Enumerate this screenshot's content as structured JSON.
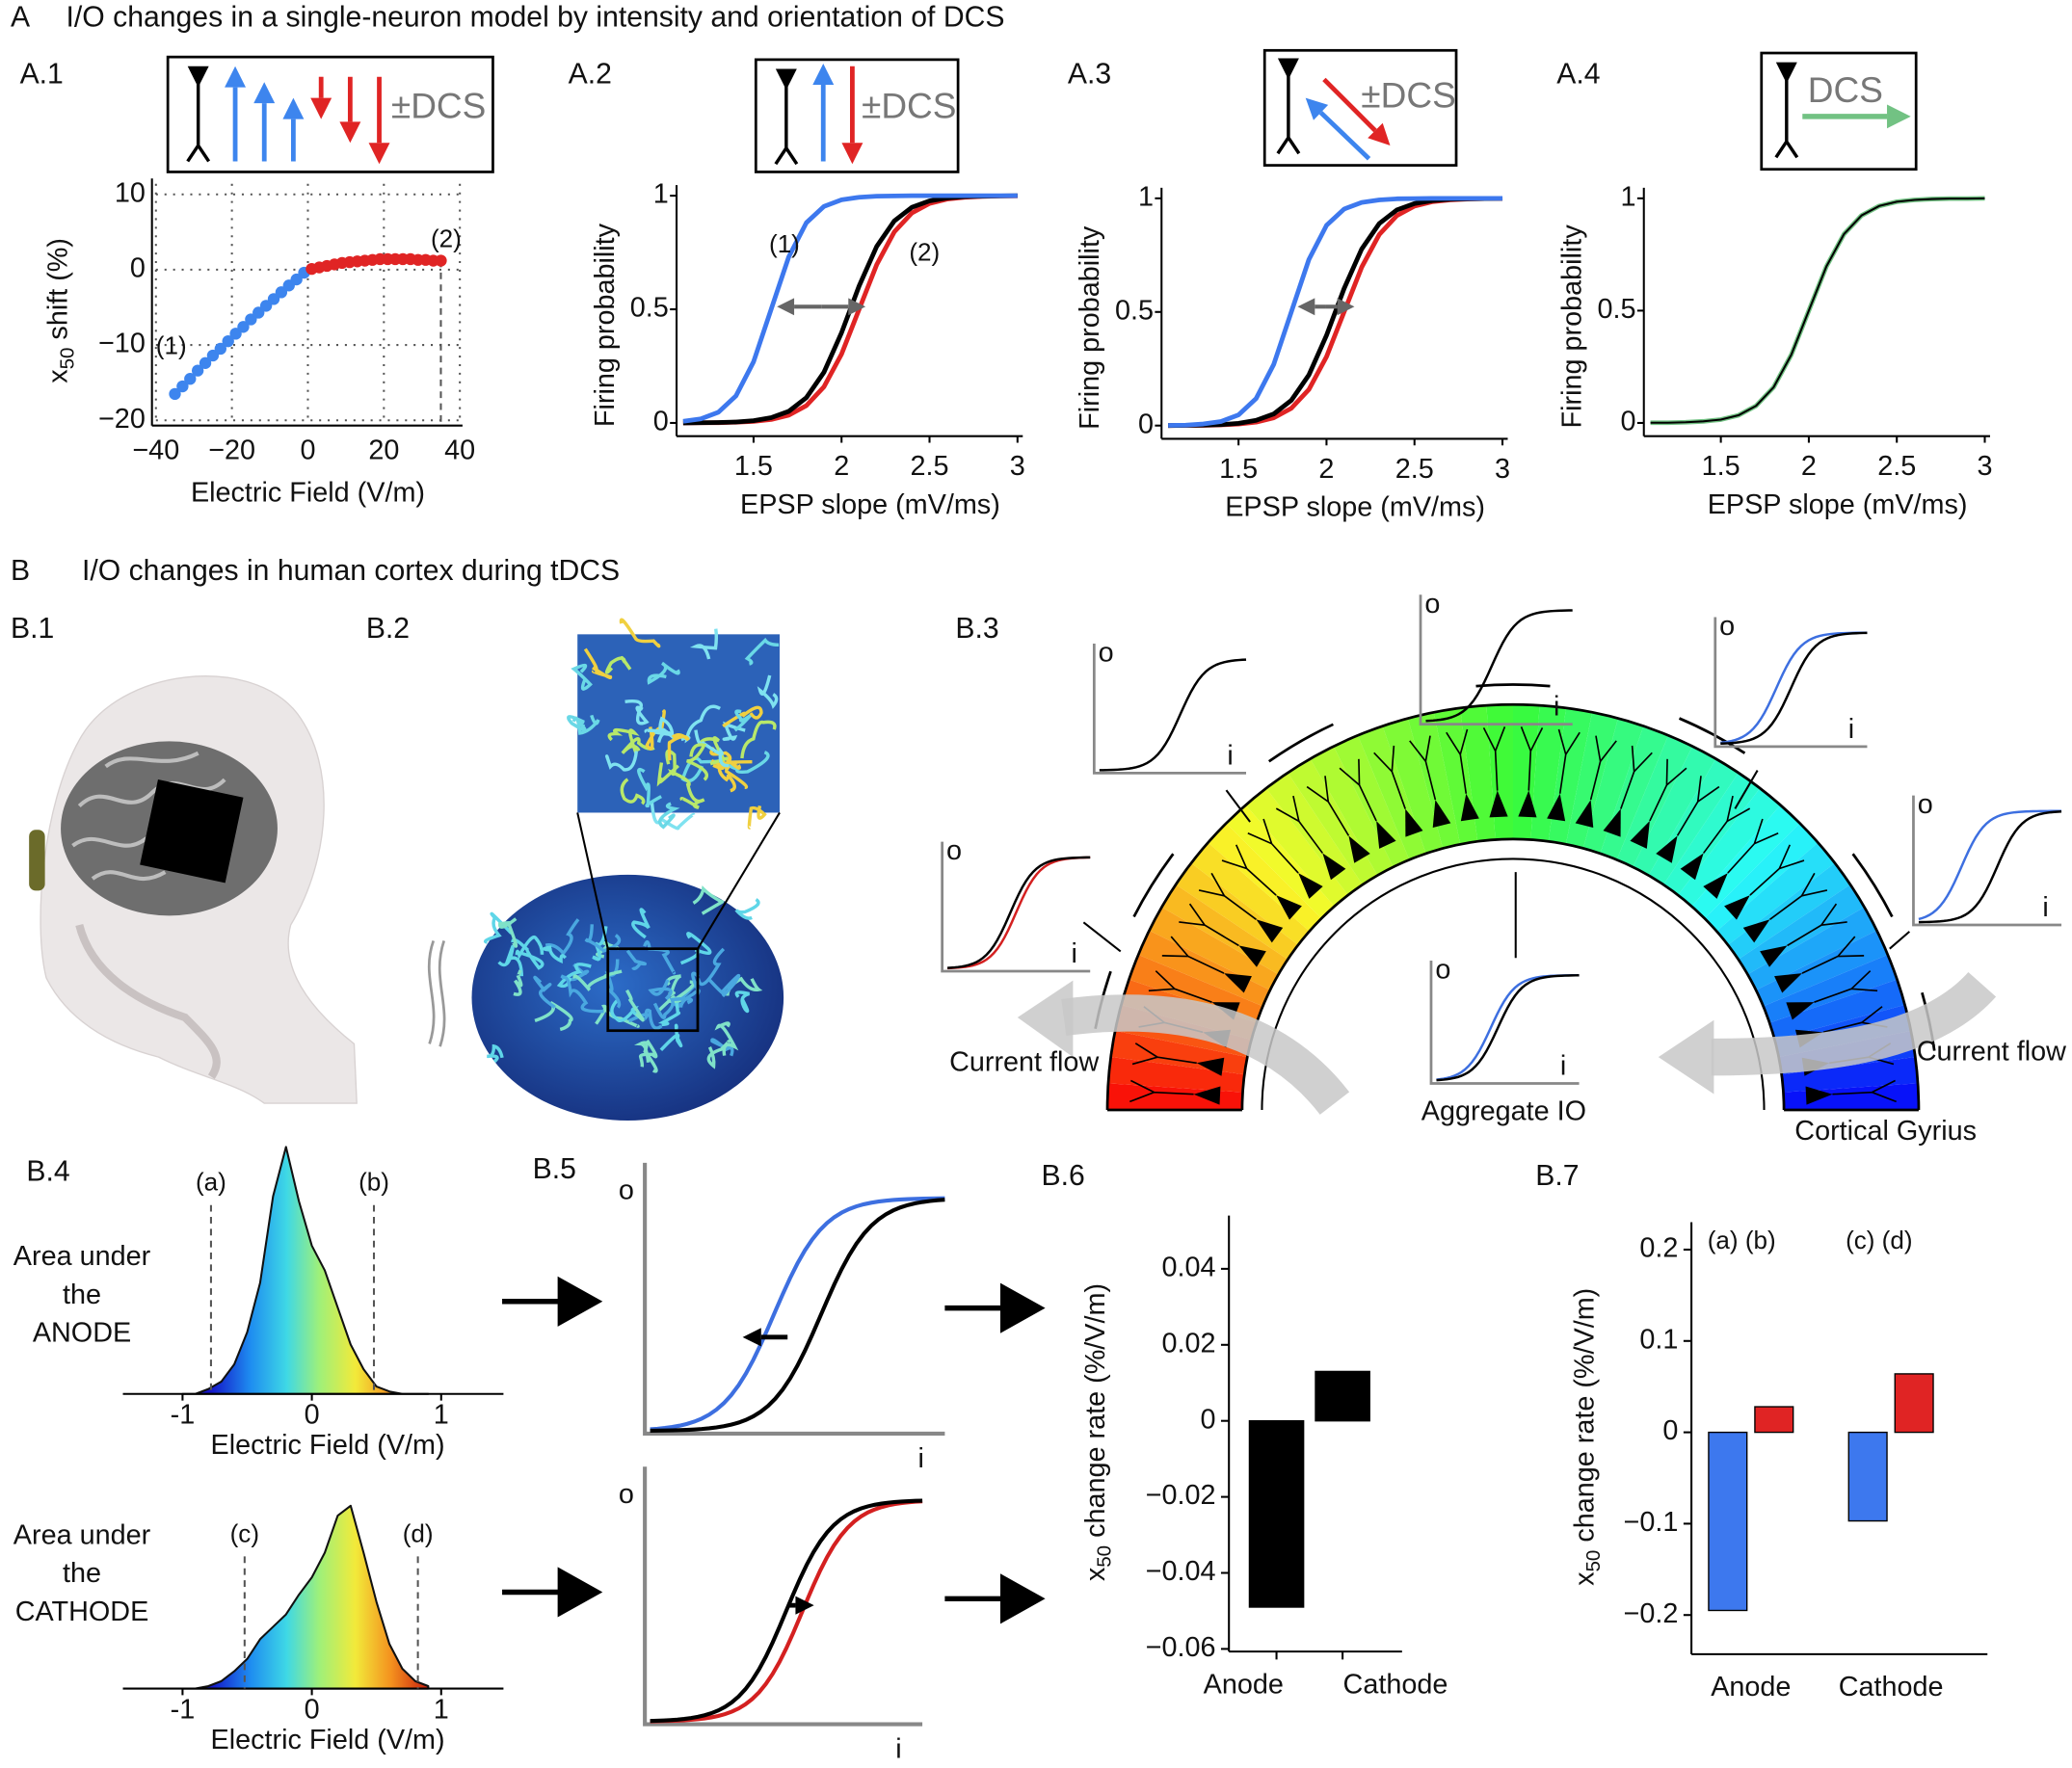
{
  "figure": {
    "sections": [
      {
        "label": "A",
        "title": "I/O changes in a single-neuron model by intensity and orientation of DCS"
      },
      {
        "label": "B",
        "title": "I/O changes in human cortex during tDCS"
      }
    ],
    "panel_labels": [
      "A.1",
      "A.2",
      "A.3",
      "A.4",
      "B.1",
      "B.2",
      "B.3",
      "B.4",
      "B.5",
      "B.6",
      "B.7"
    ],
    "dcs_sign": "±",
    "dcs": "DCS",
    "io_labels": {
      "o": "o",
      "i": "i"
    },
    "b3": {
      "current_flow": "Current flow",
      "aggregate": "Aggregate IO",
      "gyrus": "Cortical Gyrius"
    },
    "b4_labels": [
      [
        "Area under",
        "the",
        "ANODE"
      ],
      [
        "Area under",
        "the",
        "CATHODE"
      ]
    ]
  },
  "chart_data": [
    {
      "type": "scatter",
      "series": [
        {
          "color": "#3d85ee",
          "x": [
            -35,
            -33,
            -31,
            -29,
            -27,
            -25,
            -23,
            -21,
            -19,
            -17,
            -15,
            -13,
            -11,
            -9,
            -7,
            -5,
            -3,
            -1
          ],
          "values": [
            -16.5,
            -15.5,
            -14.5,
            -13.4,
            -12.4,
            -11.4,
            -10.5,
            -9.5,
            -8.5,
            -7.6,
            -6.6,
            -5.7,
            -4.8,
            -3.9,
            -3.0,
            -2.1,
            -1.3,
            -0.4
          ]
        },
        {
          "color": "#e02424",
          "x": [
            1,
            3,
            5,
            7,
            9,
            11,
            13,
            15,
            17,
            19,
            21,
            23,
            25,
            27,
            29,
            31,
            33,
            35
          ],
          "values": [
            0.1,
            0.3,
            0.5,
            0.7,
            0.9,
            1.0,
            1.1,
            1.2,
            1.3,
            1.4,
            1.4,
            1.4,
            1.4,
            1.4,
            1.3,
            1.3,
            1.2,
            1.2
          ]
        }
      ],
      "xlim": [
        -40,
        40
      ],
      "xticks": [
        {
          "value": -40,
          "label": "−40"
        },
        {
          "value": -20,
          "label": "−20"
        },
        0,
        20,
        40
      ],
      "ylim": [
        -20,
        10
      ],
      "yticks": [
        {
          "value": -20,
          "label": "−20"
        },
        {
          "value": -10,
          "label": "−10"
        },
        0,
        10
      ],
      "grid": true,
      "xlabel": "Electric Field (V/m)",
      "ylabel": {
        "main": "x",
        "sub": "50",
        "rest": " shift (%)"
      },
      "annotations": [
        "(1)",
        "(2)"
      ]
    },
    {
      "type": "line",
      "x": [
        1.1,
        1.2,
        1.3,
        1.4,
        1.5,
        1.6,
        1.7,
        1.8,
        1.9,
        2.0,
        2.1,
        2.2,
        2.3,
        2.4,
        2.5,
        2.6,
        2.7,
        2.8,
        2.9,
        3.0
      ],
      "series": [
        {
          "color": "#e02424",
          "values": [
            0,
            0.001,
            0.001,
            0.003,
            0.007,
            0.015,
            0.034,
            0.076,
            0.159,
            0.303,
            0.5,
            0.697,
            0.841,
            0.924,
            0.966,
            0.985,
            0.993,
            0.997,
            0.999,
            0.999
          ]
        },
        {
          "color": "#000000",
          "values": [
            0,
            0.001,
            0.002,
            0.004,
            0.01,
            0.023,
            0.051,
            0.111,
            0.223,
            0.397,
            0.603,
            0.777,
            0.889,
            0.949,
            0.977,
            0.99,
            0.996,
            0.998,
            0.999,
            1
          ]
        },
        {
          "color": "#3d78ee",
          "values": [
            0.007,
            0.018,
            0.047,
            0.119,
            0.269,
            0.5,
            0.731,
            0.881,
            0.953,
            0.982,
            0.993,
            0.998,
            0.999,
            1,
            1,
            1,
            1,
            1,
            1,
            1
          ]
        }
      ],
      "xlim": [
        1.1,
        3.0
      ],
      "xticks": [
        1.5,
        2,
        2.5,
        3
      ],
      "ylim": [
        0,
        1
      ],
      "yticks": [
        0,
        0.5,
        1
      ],
      "xlabel": "EPSP slope (mV/ms)",
      "ylabel": "Firing probability",
      "annotations": [
        "(1)",
        "(2)"
      ]
    },
    {
      "type": "line",
      "x": [
        1.1,
        1.2,
        1.3,
        1.4,
        1.5,
        1.6,
        1.7,
        1.8,
        1.9,
        2.0,
        2.1,
        2.2,
        2.3,
        2.4,
        2.5,
        2.6,
        2.7,
        2.8,
        2.9,
        3.0
      ],
      "series": [
        {
          "color": "#e02424",
          "values": [
            0,
            0.001,
            0.001,
            0.003,
            0.007,
            0.015,
            0.034,
            0.076,
            0.159,
            0.303,
            0.5,
            0.697,
            0.841,
            0.924,
            0.966,
            0.985,
            0.993,
            0.997,
            0.999,
            0.999
          ]
        },
        {
          "color": "#000000",
          "values": [
            0,
            0.001,
            0.002,
            0.004,
            0.01,
            0.023,
            0.051,
            0.111,
            0.223,
            0.397,
            0.603,
            0.777,
            0.889,
            0.949,
            0.977,
            0.99,
            0.996,
            0.998,
            0.999,
            1
          ]
        },
        {
          "color": "#3d78ee",
          "values": [
            0.001,
            0.002,
            0.007,
            0.018,
            0.047,
            0.119,
            0.269,
            0.5,
            0.731,
            0.881,
            0.953,
            0.982,
            0.993,
            0.998,
            0.999,
            1,
            1,
            1,
            1,
            1
          ]
        }
      ],
      "xlim": [
        1.1,
        3.0
      ],
      "xticks": [
        1.5,
        2,
        2.5,
        3
      ],
      "ylim": [
        0,
        1
      ],
      "yticks": [
        0,
        0.5,
        1
      ],
      "xlabel": "EPSP slope (mV/ms)",
      "ylabel": "Firing probability"
    },
    {
      "type": "line",
      "x": [
        1.1,
        1.2,
        1.3,
        1.4,
        1.5,
        1.6,
        1.7,
        1.8,
        1.9,
        2.0,
        2.1,
        2.2,
        2.3,
        2.4,
        2.5,
        2.6,
        2.7,
        2.8,
        2.9,
        3.0
      ],
      "series": [
        {
          "color": "#72c283",
          "values": [
            0.001,
            0.001,
            0.003,
            0.007,
            0.015,
            0.034,
            0.076,
            0.159,
            0.303,
            0.5,
            0.697,
            0.841,
            0.924,
            0.966,
            0.985,
            0.993,
            0.997,
            0.999,
            0.999,
            1
          ]
        },
        {
          "color": "#000000",
          "values": [
            0.001,
            0.001,
            0.003,
            0.007,
            0.015,
            0.034,
            0.076,
            0.159,
            0.303,
            0.5,
            0.697,
            0.841,
            0.924,
            0.966,
            0.985,
            0.993,
            0.997,
            0.999,
            0.999,
            1
          ]
        }
      ],
      "xlim": [
        1.1,
        3.0
      ],
      "xticks": [
        1.5,
        2,
        2.5,
        3
      ],
      "ylim": [
        0,
        1
      ],
      "yticks": [
        0,
        0.5,
        1
      ],
      "xlabel": "EPSP slope (mV/ms)",
      "ylabel": "Firing probability"
    },
    {
      "type": "area",
      "x": [
        -1,
        -0.9,
        -0.8,
        -0.7,
        -0.6,
        -0.5,
        -0.4,
        -0.3,
        -0.2,
        -0.1,
        0,
        0.1,
        0.2,
        0.3,
        0.4,
        0.5,
        0.6,
        0.7,
        0.8,
        0.9
      ],
      "values": [
        0,
        0,
        0.02,
        0.05,
        0.12,
        0.25,
        0.45,
        0.8,
        1.0,
        0.78,
        0.6,
        0.5,
        0.35,
        0.2,
        0.1,
        0.03,
        0.01,
        0,
        0,
        0
      ],
      "xlim": [
        -1.4,
        1.4
      ],
      "xticks": [
        -1,
        0,
        1
      ],
      "ylim": [
        0,
        1
      ],
      "xlabel": "Electric Field (V/m)",
      "markers": [
        {
          "label": "(a)",
          "x": -0.78
        },
        {
          "label": "(b)",
          "x": 0.48
        }
      ]
    },
    {
      "type": "area",
      "x": [
        -1,
        -0.9,
        -0.8,
        -0.7,
        -0.6,
        -0.5,
        -0.4,
        -0.3,
        -0.2,
        -0.1,
        0,
        0.1,
        0.2,
        0.3,
        0.4,
        0.5,
        0.6,
        0.7,
        0.8,
        0.9
      ],
      "values": [
        0,
        0,
        0.01,
        0.03,
        0.07,
        0.12,
        0.2,
        0.25,
        0.3,
        0.38,
        0.45,
        0.55,
        0.7,
        0.74,
        0.55,
        0.35,
        0.18,
        0.08,
        0.03,
        0.01
      ],
      "xlim": [
        -1.4,
        1.4
      ],
      "xticks": [
        -1,
        0,
        1
      ],
      "ylim": [
        0,
        1
      ],
      "xlabel": "Electric Field (V/m)",
      "markers": [
        {
          "label": "(c)",
          "x": -0.52
        },
        {
          "label": "(d)",
          "x": 0.82
        }
      ]
    },
    {
      "type": "bar",
      "categories": [
        "Anode",
        "Cathode"
      ],
      "values": [
        -0.049,
        0.013
      ],
      "color": "#000000",
      "ylim": [
        -0.06,
        0.054
      ],
      "yticks": [
        {
          "value": -0.06,
          "label": "−0.06"
        },
        {
          "value": -0.04,
          "label": "−0.04"
        },
        {
          "value": -0.02,
          "label": "−0.02"
        },
        0,
        0.02,
        0.04
      ],
      "ylabel": {
        "main": "x",
        "sub": "50",
        "rest": " change rate (%/V/m)"
      }
    },
    {
      "type": "bar",
      "categories": [
        "Anode",
        "Cathode"
      ],
      "series": [
        {
          "color": "#3d78ee",
          "values": [
            -0.195,
            -0.097
          ]
        },
        {
          "color": "#e02424",
          "values": [
            0.028,
            0.064
          ]
        }
      ],
      "ylim": [
        -0.24,
        0.23
      ],
      "yticks": [
        {
          "value": -0.2,
          "label": "−0.2"
        },
        {
          "value": -0.1,
          "label": "−0.1"
        },
        0,
        0.1,
        0.2
      ],
      "ylabel": {
        "main": "x",
        "sub": "50",
        "rest": " change rate (%/V/m)"
      },
      "annotations": [
        "(a) (b)",
        "(c) (d)"
      ]
    }
  ]
}
